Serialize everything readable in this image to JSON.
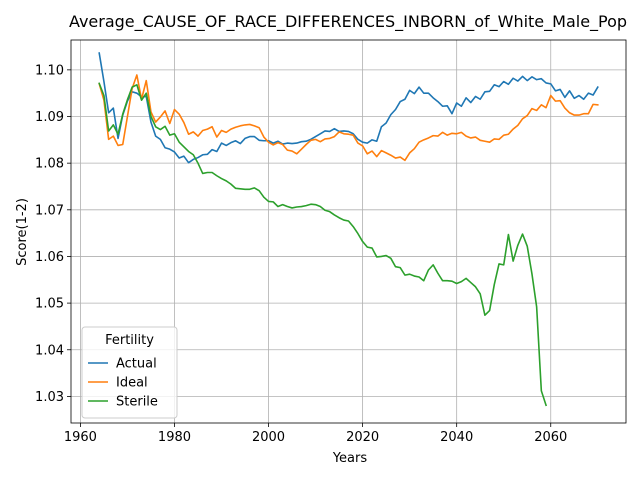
{
  "chart_data": {
    "type": "line",
    "title": "Average_CAUSE_OF_RACE_DIFFERENCES_INBORN_of_White_Male_Pop",
    "xlabel": "Years",
    "ylabel": "Score(1-2)",
    "xlim": [
      1958,
      2076
    ],
    "ylim": [
      1.0243,
      1.1064
    ],
    "xticks": [
      1960,
      1980,
      2000,
      2020,
      2040,
      2060
    ],
    "yticks": [
      1.03,
      1.04,
      1.05,
      1.06,
      1.07,
      1.08,
      1.09,
      1.1
    ],
    "ytick_labels": [
      "1.03",
      "1.04",
      "1.05",
      "1.06",
      "1.07",
      "1.08",
      "1.09",
      "1.10"
    ],
    "grid": true,
    "legend": {
      "title": "Fertility",
      "placement": "lower-left"
    },
    "series": [
      {
        "name": "Actual",
        "color": "#1f77b4",
        "x": [
          1964,
          1965,
          1966,
          1967,
          1968,
          1969,
          1970,
          1971,
          1972,
          1973,
          1974,
          1975,
          1976,
          1977,
          1978,
          1979,
          1980,
          1981,
          1982,
          1983,
          1984,
          1985,
          1986,
          1987,
          1988,
          1989,
          1990,
          1991,
          1992,
          1993,
          1994,
          1995,
          1996,
          1997,
          1998,
          1999,
          2000,
          2001,
          2002,
          2003,
          2004,
          2005,
          2006,
          2007,
          2008,
          2009,
          2010,
          2011,
          2012,
          2013,
          2014,
          2015,
          2016,
          2017,
          2018,
          2019,
          2020,
          2021,
          2022,
          2023,
          2024,
          2025,
          2026,
          2027,
          2028,
          2029,
          2030,
          2031,
          2032,
          2033,
          2034,
          2035,
          2036,
          2037,
          2038,
          2039,
          2040,
          2041,
          2042,
          2043,
          2044,
          2045,
          2046,
          2047,
          2048,
          2049,
          2050,
          2051,
          2052,
          2053,
          2054,
          2055,
          2056,
          2057,
          2058,
          2059,
          2060,
          2061,
          2062,
          2063,
          2064,
          2065,
          2066,
          2067,
          2068,
          2069,
          2070
        ],
        "y": [
          1.1036,
          1.0975,
          1.0908,
          1.0918,
          1.0853,
          1.0903,
          1.0933,
          1.0953,
          1.095,
          1.0942,
          1.0943,
          1.0888,
          1.0858,
          1.0851,
          1.0833,
          1.083,
          1.0824,
          1.0811,
          1.0815,
          1.0801,
          1.0808,
          1.0812,
          1.0818,
          1.0819,
          1.0829,
          1.0825,
          1.0843,
          1.0838,
          1.0844,
          1.0848,
          1.0842,
          1.0853,
          1.0857,
          1.0857,
          1.0849,
          1.0848,
          1.0848,
          1.0843,
          1.0847,
          1.0841,
          1.0843,
          1.0842,
          1.0843,
          1.0846,
          1.0847,
          1.0851,
          1.0857,
          1.0863,
          1.0869,
          1.0868,
          1.0874,
          1.0868,
          1.0869,
          1.0868,
          1.0863,
          1.0851,
          1.0845,
          1.0843,
          1.085,
          1.0847,
          1.0878,
          1.0886,
          1.0904,
          1.0915,
          1.0932,
          1.0937,
          1.0956,
          1.0949,
          1.0963,
          1.095,
          1.095,
          1.094,
          1.0932,
          1.0922,
          1.0923,
          1.0906,
          1.0929,
          1.0922,
          1.094,
          1.093,
          1.0943,
          1.0937,
          1.0953,
          1.0954,
          1.0968,
          1.0964,
          1.0975,
          1.0969,
          1.0982,
          1.0976,
          1.0986,
          1.0977,
          1.0985,
          1.0979,
          1.0981,
          1.0972,
          1.097,
          1.0955,
          1.0958,
          1.0941,
          1.0955,
          1.0939,
          1.0945,
          1.0937,
          1.095,
          1.0946,
          1.0963
        ]
      },
      {
        "name": "Ideal",
        "color": "#ff7f0e",
        "x": [
          1964,
          1965,
          1966,
          1967,
          1968,
          1969,
          1970,
          1971,
          1972,
          1973,
          1974,
          1975,
          1976,
          1977,
          1978,
          1979,
          1980,
          1981,
          1982,
          1983,
          1984,
          1985,
          1986,
          1987,
          1988,
          1989,
          1990,
          1991,
          1992,
          1993,
          1994,
          1995,
          1996,
          1997,
          1998,
          1999,
          2000,
          2001,
          2002,
          2003,
          2004,
          2005,
          2006,
          2007,
          2008,
          2009,
          2010,
          2011,
          2012,
          2013,
          2014,
          2015,
          2016,
          2017,
          2018,
          2019,
          2020,
          2021,
          2022,
          2023,
          2024,
          2025,
          2026,
          2027,
          2028,
          2029,
          2030,
          2031,
          2032,
          2033,
          2034,
          2035,
          2036,
          2037,
          2038,
          2039,
          2040,
          2041,
          2042,
          2043,
          2044,
          2045,
          2046,
          2047,
          2048,
          2049,
          2050,
          2051,
          2052,
          2053,
          2054,
          2055,
          2056,
          2057,
          2058,
          2059,
          2060,
          2061,
          2062,
          2063,
          2064,
          2065,
          2066,
          2067,
          2068,
          2069,
          2070
        ],
        "y": [
          1.097,
          1.0935,
          1.0851,
          1.0858,
          1.0838,
          1.084,
          1.09,
          1.096,
          1.0989,
          1.0937,
          1.0977,
          1.091,
          1.0888,
          1.0899,
          1.0912,
          1.0885,
          1.0915,
          1.0905,
          1.0887,
          1.0862,
          1.0867,
          1.0858,
          1.087,
          1.0873,
          1.0878,
          1.0856,
          1.087,
          1.0866,
          1.0873,
          1.0877,
          1.088,
          1.0882,
          1.0883,
          1.088,
          1.0876,
          1.0856,
          1.0845,
          1.0839,
          1.0844,
          1.084,
          1.0828,
          1.0826,
          1.082,
          1.083,
          1.084,
          1.0849,
          1.0851,
          1.0846,
          1.0852,
          1.0853,
          1.0857,
          1.0867,
          1.0863,
          1.0862,
          1.086,
          1.0843,
          1.0837,
          1.082,
          1.0826,
          1.0814,
          1.0827,
          1.0822,
          1.0817,
          1.0811,
          1.0813,
          1.0806,
          1.0822,
          1.0831,
          1.0845,
          1.085,
          1.0854,
          1.0859,
          1.0858,
          1.0866,
          1.086,
          1.0864,
          1.0863,
          1.0866,
          1.0858,
          1.0854,
          1.0856,
          1.0849,
          1.0847,
          1.0845,
          1.0852,
          1.0851,
          1.086,
          1.0862,
          1.0873,
          1.0881,
          1.0895,
          1.0902,
          1.0917,
          1.0913,
          1.0925,
          1.0919,
          1.0945,
          1.0933,
          1.0934,
          1.0918,
          1.0908,
          1.0903,
          1.0903,
          1.0906,
          1.0906,
          1.0926,
          1.0925
        ]
      },
      {
        "name": "Sterile",
        "color": "#2ca02c",
        "x": [
          1964,
          1965,
          1966,
          1967,
          1968,
          1969,
          1970,
          1971,
          1972,
          1973,
          1974,
          1975,
          1976,
          1977,
          1978,
          1979,
          1980,
          1981,
          1982,
          1983,
          1984,
          1985,
          1986,
          1987,
          1988,
          1989,
          1990,
          1991,
          1992,
          1993,
          1994,
          1995,
          1996,
          1997,
          1998,
          1999,
          2000,
          2001,
          2002,
          2003,
          2004,
          2005,
          2006,
          2007,
          2008,
          2009,
          2010,
          2011,
          2012,
          2013,
          2014,
          2015,
          2016,
          2017,
          2018,
          2019,
          2020,
          2021,
          2022,
          2023,
          2024,
          2025,
          2026,
          2027,
          2028,
          2029,
          2030,
          2031,
          2032,
          2033,
          2034,
          2035,
          2036,
          2037,
          2038,
          2039,
          2040,
          2041,
          2042,
          2043,
          2044,
          2045,
          2046,
          2047,
          2048,
          2049,
          2050,
          2051,
          2052,
          2053,
          2054,
          2055,
          2056,
          2057,
          2058,
          2059
        ],
        "y": [
          1.0971,
          1.0945,
          1.0869,
          1.0882,
          1.0862,
          1.0905,
          1.0936,
          1.0963,
          1.0968,
          1.0935,
          1.095,
          1.09,
          1.0878,
          1.0872,
          1.0879,
          1.086,
          1.0863,
          1.0845,
          1.0835,
          1.0825,
          1.0818,
          1.08,
          1.0778,
          1.078,
          1.078,
          1.0773,
          1.0767,
          1.0762,
          1.0755,
          1.0746,
          1.0745,
          1.0744,
          1.0744,
          1.0747,
          1.0741,
          1.0727,
          1.0718,
          1.0717,
          1.0707,
          1.0711,
          1.0707,
          1.0704,
          1.0706,
          1.0707,
          1.0709,
          1.0712,
          1.0711,
          1.0707,
          1.0699,
          1.0696,
          1.0689,
          1.0683,
          1.0678,
          1.0676,
          1.0664,
          1.0649,
          1.0632,
          1.062,
          1.0618,
          1.0599,
          1.06,
          1.0602,
          1.0596,
          1.0578,
          1.0576,
          1.056,
          1.0562,
          1.0558,
          1.0556,
          1.0548,
          1.0571,
          1.0582,
          1.0564,
          1.0548,
          1.0548,
          1.0547,
          1.0542,
          1.0546,
          1.0553,
          1.0544,
          1.0535,
          1.052,
          1.0474,
          1.0484,
          1.054,
          1.0584,
          1.0582,
          1.0647,
          1.059,
          1.0624,
          1.0648,
          1.0622,
          1.0563,
          1.0492,
          1.0312,
          1.0281
        ]
      }
    ]
  }
}
